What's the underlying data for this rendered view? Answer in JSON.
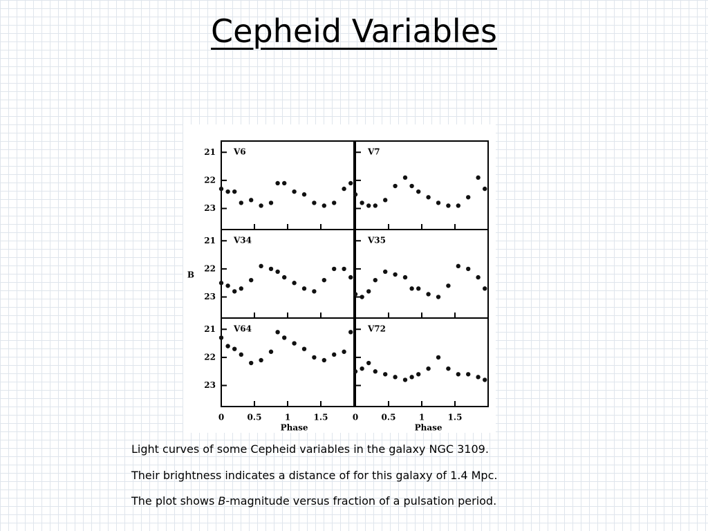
{
  "header": {
    "title": "Cepheid Variables"
  },
  "figure": {
    "y_label": "B",
    "x_label": "Phase",
    "xlim": [
      0,
      2
    ],
    "ylim": [
      20.6,
      23.75
    ],
    "xticks": [
      0,
      0.5,
      1,
      1.5
    ],
    "yticks": [
      21,
      22,
      23
    ],
    "x": [
      0,
      0.1,
      0.2,
      0.3,
      0.45,
      0.6,
      0.75,
      0.85,
      0.95,
      1.1,
      1.25,
      1.4,
      1.55,
      1.7,
      1.85,
      1.95
    ],
    "panels": [
      {
        "name": "V6",
        "values": [
          22.3,
          22.4,
          22.4,
          22.8,
          22.7,
          22.9,
          22.8,
          22.1,
          22.1,
          22.4,
          22.5,
          22.8,
          22.9,
          22.8,
          22.3,
          22.1
        ]
      },
      {
        "name": "V7",
        "values": [
          22.5,
          22.8,
          22.9,
          22.9,
          22.7,
          22.2,
          21.9,
          22.2,
          22.4,
          22.6,
          22.8,
          22.9,
          22.9,
          22.6,
          21.9,
          22.3
        ]
      },
      {
        "name": "V34",
        "values": [
          22.5,
          22.6,
          22.8,
          22.7,
          22.4,
          21.9,
          22.0,
          22.1,
          22.3,
          22.5,
          22.7,
          22.8,
          22.4,
          22.0,
          22.0,
          22.3
        ]
      },
      {
        "name": "V35",
        "values": [
          22.9,
          23.0,
          22.8,
          22.4,
          22.1,
          22.2,
          22.3,
          22.7,
          22.7,
          22.9,
          23.0,
          22.6,
          21.9,
          22.0,
          22.3,
          22.7
        ]
      },
      {
        "name": "V64",
        "values": [
          21.3,
          21.6,
          21.7,
          21.9,
          22.2,
          22.1,
          21.8,
          21.1,
          21.3,
          21.5,
          21.7,
          22.0,
          22.1,
          21.9,
          21.8,
          21.1
        ]
      },
      {
        "name": "V72",
        "values": [
          22.5,
          22.4,
          22.2,
          22.5,
          22.6,
          22.7,
          22.8,
          22.7,
          22.6,
          22.4,
          22.0,
          22.4,
          22.6,
          22.6,
          22.7,
          22.8
        ]
      }
    ]
  },
  "caption": {
    "line1": "Light curves of some Cepheid variables in the galaxy NGC 3109.",
    "line2": "Their brightness indicates a distance of for this galaxy of 1.4 Mpc.",
    "line3_start": "The plot shows ",
    "line3_italic": "B",
    "line3_end": "-magnitude versus fraction of a pulsation period."
  }
}
